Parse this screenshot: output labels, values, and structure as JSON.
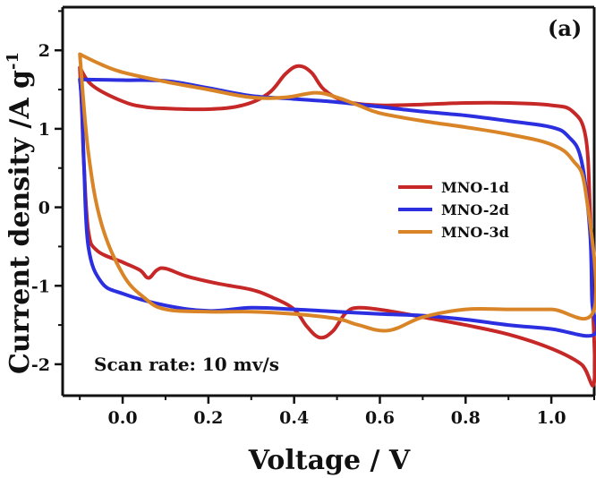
{
  "chart_data": {
    "type": "line",
    "title": "",
    "panel_label": "(a)",
    "xlabel": "Voltage / V",
    "ylabel": "Current density /A g",
    "ylabel_superscript": "-1",
    "annotation": "Scan rate: 10 mv/s",
    "xlim": [
      -0.14,
      1.1
    ],
    "ylim": [
      -2.4,
      2.55
    ],
    "xticks": [
      0.0,
      0.2,
      0.4,
      0.6,
      0.8,
      1.0
    ],
    "xtick_labels": [
      "0.0",
      "0.2",
      "0.4",
      "0.6",
      "0.8",
      "1.0"
    ],
    "yticks": [
      2,
      1,
      0,
      -1,
      -2
    ],
    "ytick_labels": [
      "2",
      "1",
      "0",
      "-1",
      "-2"
    ],
    "legend_position": "right",
    "grid": false,
    "series": [
      {
        "name": "MNO-1d",
        "color": "#c62828",
        "points": [
          [
            -0.1,
            1.78
          ],
          [
            -0.07,
            1.55
          ],
          [
            0.0,
            1.35
          ],
          [
            0.05,
            1.28
          ],
          [
            0.1,
            1.26
          ],
          [
            0.2,
            1.25
          ],
          [
            0.28,
            1.3
          ],
          [
            0.34,
            1.45
          ],
          [
            0.38,
            1.7
          ],
          [
            0.41,
            1.8
          ],
          [
            0.44,
            1.72
          ],
          [
            0.47,
            1.5
          ],
          [
            0.52,
            1.35
          ],
          [
            0.6,
            1.3
          ],
          [
            0.7,
            1.31
          ],
          [
            0.8,
            1.33
          ],
          [
            0.9,
            1.33
          ],
          [
            1.0,
            1.3
          ],
          [
            1.05,
            1.22
          ],
          [
            1.08,
            0.9
          ],
          [
            1.09,
            0.0
          ],
          [
            1.095,
            -1.0
          ],
          [
            1.1,
            -2.22
          ],
          [
            1.07,
            -2.0
          ],
          [
            1.0,
            -1.8
          ],
          [
            0.9,
            -1.62
          ],
          [
            0.8,
            -1.5
          ],
          [
            0.7,
            -1.4
          ],
          [
            0.62,
            -1.32
          ],
          [
            0.55,
            -1.28
          ],
          [
            0.52,
            -1.35
          ],
          [
            0.49,
            -1.58
          ],
          [
            0.46,
            -1.66
          ],
          [
            0.43,
            -1.52
          ],
          [
            0.4,
            -1.3
          ],
          [
            0.35,
            -1.15
          ],
          [
            0.3,
            -1.05
          ],
          [
            0.22,
            -0.97
          ],
          [
            0.15,
            -0.88
          ],
          [
            0.1,
            -0.78
          ],
          [
            0.08,
            -0.8
          ],
          [
            0.06,
            -0.9
          ],
          [
            0.04,
            -0.8
          ],
          [
            0.0,
            -0.7
          ],
          [
            -0.06,
            -0.55
          ],
          [
            -0.08,
            -0.3
          ],
          [
            -0.09,
            0.5
          ],
          [
            -0.095,
            1.2
          ],
          [
            -0.1,
            1.78
          ]
        ]
      },
      {
        "name": "MNO-2d",
        "color": "#2b2fe0",
        "points": [
          [
            -0.1,
            1.63
          ],
          [
            0.0,
            1.62
          ],
          [
            0.1,
            1.61
          ],
          [
            0.2,
            1.52
          ],
          [
            0.3,
            1.42
          ],
          [
            0.4,
            1.38
          ],
          [
            0.5,
            1.34
          ],
          [
            0.6,
            1.28
          ],
          [
            0.7,
            1.22
          ],
          [
            0.8,
            1.17
          ],
          [
            0.9,
            1.1
          ],
          [
            1.0,
            1.02
          ],
          [
            1.04,
            0.9
          ],
          [
            1.07,
            0.6
          ],
          [
            1.09,
            -0.3
          ],
          [
            1.095,
            -1.2
          ],
          [
            1.1,
            -1.62
          ],
          [
            1.0,
            -1.55
          ],
          [
            0.9,
            -1.5
          ],
          [
            0.8,
            -1.43
          ],
          [
            0.7,
            -1.38
          ],
          [
            0.6,
            -1.36
          ],
          [
            0.5,
            -1.33
          ],
          [
            0.4,
            -1.3
          ],
          [
            0.3,
            -1.28
          ],
          [
            0.2,
            -1.32
          ],
          [
            0.1,
            -1.25
          ],
          [
            0.0,
            -1.1
          ],
          [
            -0.05,
            -0.95
          ],
          [
            -0.08,
            -0.5
          ],
          [
            -0.09,
            0.5
          ],
          [
            -0.095,
            1.3
          ],
          [
            -0.1,
            1.63
          ]
        ]
      },
      {
        "name": "MNO-3d",
        "color": "#d98527",
        "points": [
          [
            -0.1,
            1.95
          ],
          [
            -0.05,
            1.82
          ],
          [
            0.0,
            1.72
          ],
          [
            0.1,
            1.6
          ],
          [
            0.2,
            1.5
          ],
          [
            0.3,
            1.4
          ],
          [
            0.38,
            1.4
          ],
          [
            0.45,
            1.46
          ],
          [
            0.5,
            1.4
          ],
          [
            0.55,
            1.3
          ],
          [
            0.6,
            1.2
          ],
          [
            0.7,
            1.1
          ],
          [
            0.8,
            1.02
          ],
          [
            0.9,
            0.93
          ],
          [
            1.0,
            0.8
          ],
          [
            1.05,
            0.6
          ],
          [
            1.08,
            0.2
          ],
          [
            1.1,
            -1.3
          ],
          [
            1.0,
            -1.3
          ],
          [
            0.9,
            -1.3
          ],
          [
            0.8,
            -1.3
          ],
          [
            0.7,
            -1.4
          ],
          [
            0.62,
            -1.57
          ],
          [
            0.55,
            -1.5
          ],
          [
            0.5,
            -1.42
          ],
          [
            0.4,
            -1.36
          ],
          [
            0.3,
            -1.33
          ],
          [
            0.2,
            -1.33
          ],
          [
            0.1,
            -1.3
          ],
          [
            0.05,
            -1.15
          ],
          [
            0.0,
            -0.85
          ],
          [
            -0.05,
            -0.2
          ],
          [
            -0.08,
            0.7
          ],
          [
            -0.1,
            1.95
          ]
        ]
      }
    ]
  }
}
